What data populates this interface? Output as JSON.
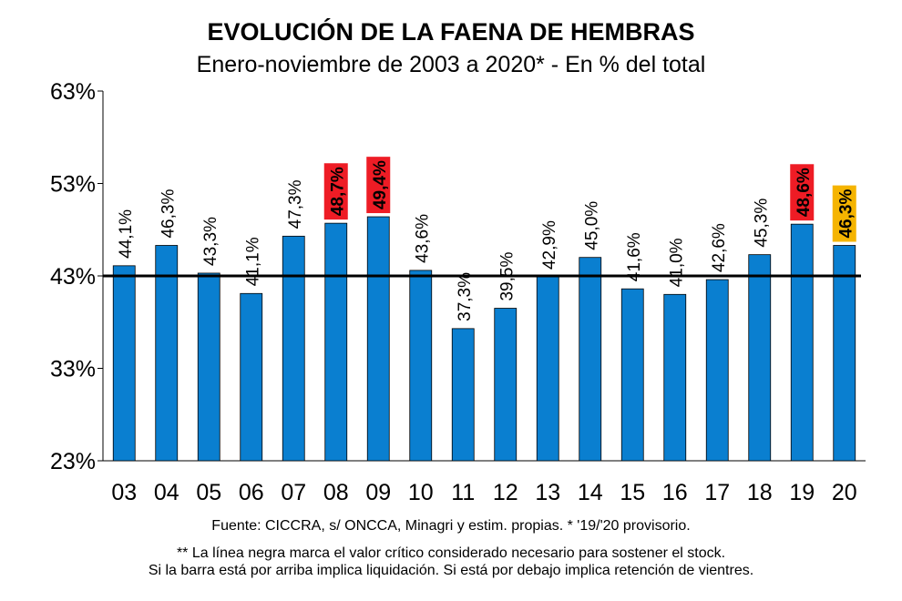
{
  "chart_data": {
    "type": "bar",
    "title": "EVOLUCIÓN DE LA FAENA DE HEMBRAS",
    "subtitle": "Enero-noviembre de 2003 a 2020* - En % del total",
    "categories": [
      "03",
      "04",
      "05",
      "06",
      "07",
      "08",
      "09",
      "10",
      "11",
      "12",
      "13",
      "14",
      "15",
      "16",
      "17",
      "18",
      "19",
      "20"
    ],
    "values": [
      44.1,
      46.3,
      43.3,
      41.1,
      47.3,
      48.7,
      49.4,
      43.6,
      37.3,
      39.5,
      42.9,
      45.0,
      41.6,
      41.0,
      42.6,
      45.3,
      48.6,
      46.3
    ],
    "value_labels": [
      "44,1%",
      "46,3%",
      "43,3%",
      "41,1%",
      "47,3%",
      "48,7%",
      "49,4%",
      "43,6%",
      "37,3%",
      "39,5%",
      "42,9%",
      "45,0%",
      "41,6%",
      "41,0%",
      "42,6%",
      "45,3%",
      "48,6%",
      "46,3%"
    ],
    "label_backgrounds": [
      "none",
      "none",
      "none",
      "none",
      "none",
      "#ee1c25",
      "#ee1c25",
      "none",
      "none",
      "none",
      "none",
      "none",
      "none",
      "none",
      "none",
      "none",
      "#ee1c25",
      "#f5b400"
    ],
    "color": "#0a7fd0",
    "ylim": [
      23,
      63
    ],
    "yticks": [
      {
        "value": 23,
        "label": "23%"
      },
      {
        "value": 33,
        "label": "33%"
      },
      {
        "value": 43,
        "label": "43%"
      },
      {
        "value": 53,
        "label": "53%"
      },
      {
        "value": 63,
        "label": "63%"
      }
    ],
    "reference_line": 43,
    "notes": [
      "Fuente: CICCRA, s/ ONCCA, Minagri y estim. propias. * '19/'20  provisorio.",
      "** La línea negra marca el valor crítico considerado necesario para sostener el stock.",
      "Si la barra está por arriba implica liquidación. Si está por debajo implica retención de vientres."
    ]
  }
}
